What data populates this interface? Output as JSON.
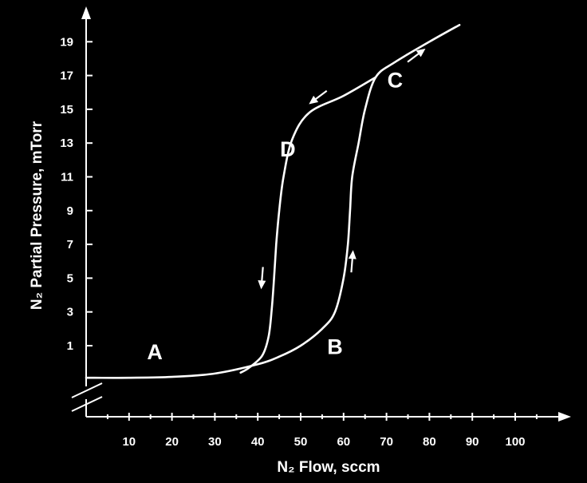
{
  "chart_data": {
    "type": "line",
    "title": "",
    "xlabel": "N₂ Flow, sccm",
    "ylabel": "N₂ Partial Pressure, mTorr",
    "xlim": [
      0,
      105
    ],
    "ylim": [
      0,
      20
    ],
    "x_ticks": [
      10,
      20,
      30,
      40,
      50,
      60,
      70,
      80,
      90,
      100
    ],
    "y_ticks": [
      1,
      3,
      5,
      7,
      9,
      11,
      13,
      15,
      17,
      19
    ],
    "axis_break": true,
    "grid": false,
    "legend": "none",
    "series": [
      {
        "direction": "increasing",
        "points": [
          [
            0,
            -0.9
          ],
          [
            10,
            -0.9
          ],
          [
            20,
            -0.85
          ],
          [
            30,
            -0.65
          ],
          [
            40,
            -0.1
          ],
          [
            45,
            0.35
          ],
          [
            50,
            1.0
          ],
          [
            55,
            2.0
          ],
          [
            58,
            3.0
          ],
          [
            60,
            5.0
          ],
          [
            61,
            7.0
          ],
          [
            61.5,
            9.0
          ],
          [
            62,
            11.0
          ],
          [
            63.5,
            13.0
          ],
          [
            65,
            15.0
          ],
          [
            67.5,
            16.9
          ],
          [
            72,
            17.8
          ],
          [
            80,
            19.0
          ],
          [
            87,
            20.0
          ]
        ]
      },
      {
        "direction": "decreasing",
        "points": [
          [
            67.5,
            16.9
          ],
          [
            60,
            15.8
          ],
          [
            52,
            14.8
          ],
          [
            48,
            13.2
          ],
          [
            46,
            11.0
          ],
          [
            45,
            9.0
          ],
          [
            44.3,
            7.0
          ],
          [
            43.8,
            5.0
          ],
          [
            43.2,
            3.0
          ],
          [
            42.5,
            1.5
          ],
          [
            41,
            0.4
          ],
          [
            38,
            -0.3
          ],
          [
            36,
            -0.6
          ]
        ]
      }
    ],
    "annotations": [
      {
        "text": "A",
        "x": 16,
        "y": 0.2
      },
      {
        "text": "B",
        "x": 58,
        "y": 0.5
      },
      {
        "text": "C",
        "x": 72,
        "y": 16.3
      },
      {
        "text": "D",
        "x": 47,
        "y": 12.2
      }
    ],
    "arrows": [
      {
        "at": [
          77,
          18.2
        ],
        "direction": "up-right"
      },
      {
        "at": [
          54,
          15.7
        ],
        "direction": "down-left"
      },
      {
        "at": [
          41,
          5.0
        ],
        "direction": "down"
      },
      {
        "at": [
          62,
          6.0
        ],
        "direction": "up"
      }
    ]
  }
}
